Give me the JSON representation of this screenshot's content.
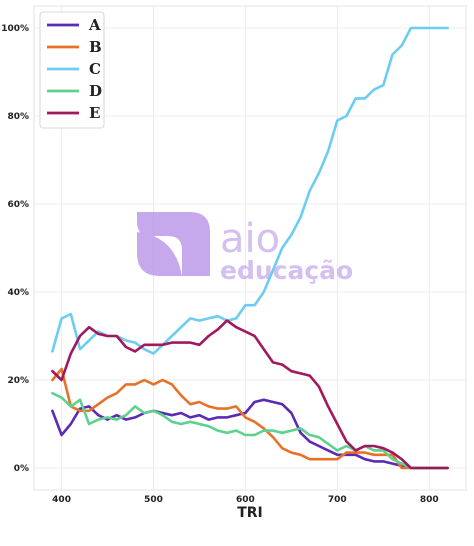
{
  "chart_data": {
    "type": "line",
    "xlabel": "TRI",
    "ylabel": "",
    "xlim": [
      370,
      840
    ],
    "ylim": [
      -0.05,
      1.05
    ],
    "xticks": [
      400,
      500,
      600,
      700,
      800
    ],
    "yticks": [
      0,
      0.2,
      0.4,
      0.6,
      0.8,
      1.0
    ],
    "ytick_labels": [
      "0%",
      "20%",
      "40%",
      "60%",
      "80%",
      "100%"
    ],
    "grid": true,
    "legend_position": "top-left",
    "x": [
      390,
      400,
      410,
      420,
      430,
      440,
      450,
      460,
      470,
      480,
      490,
      500,
      510,
      520,
      530,
      540,
      550,
      560,
      570,
      580,
      590,
      600,
      610,
      620,
      630,
      640,
      650,
      660,
      670,
      680,
      690,
      700,
      710,
      720,
      730,
      740,
      750,
      760,
      770,
      780,
      790,
      800,
      810,
      820
    ],
    "series": [
      {
        "name": "A",
        "color": "#5b2bb5",
        "values": [
          0.13,
          0.075,
          0.1,
          0.135,
          0.14,
          0.12,
          0.11,
          0.12,
          0.11,
          0.115,
          0.125,
          0.13,
          0.125,
          0.12,
          0.125,
          0.115,
          0.12,
          0.11,
          0.115,
          0.115,
          0.12,
          0.125,
          0.15,
          0.155,
          0.15,
          0.145,
          0.125,
          0.08,
          0.06,
          0.05,
          0.04,
          0.03,
          0.03,
          0.03,
          0.02,
          0.015,
          0.015,
          0.01,
          0.005,
          0,
          0,
          0,
          0,
          0
        ]
      },
      {
        "name": "B",
        "color": "#e8712a",
        "values": [
          0.2,
          0.225,
          0.14,
          0.13,
          0.13,
          0.145,
          0.16,
          0.17,
          0.19,
          0.19,
          0.2,
          0.19,
          0.2,
          0.19,
          0.165,
          0.145,
          0.15,
          0.14,
          0.135,
          0.135,
          0.14,
          0.115,
          0.105,
          0.09,
          0.07,
          0.045,
          0.035,
          0.03,
          0.02,
          0.02,
          0.02,
          0.02,
          0.035,
          0.035,
          0.035,
          0.03,
          0.03,
          0.03,
          0,
          0,
          0,
          0,
          0,
          0
        ]
      },
      {
        "name": "C",
        "color": "#6ccdf2",
        "values": [
          0.265,
          0.34,
          0.35,
          0.27,
          0.29,
          0.31,
          0.3,
          0.3,
          0.29,
          0.285,
          0.27,
          0.26,
          0.28,
          0.3,
          0.32,
          0.34,
          0.335,
          0.34,
          0.345,
          0.335,
          0.34,
          0.37,
          0.37,
          0.4,
          0.45,
          0.5,
          0.53,
          0.57,
          0.63,
          0.67,
          0.72,
          0.79,
          0.8,
          0.84,
          0.84,
          0.86,
          0.87,
          0.94,
          0.96,
          1.0,
          1.0,
          1.0,
          1.0,
          1.0
        ]
      },
      {
        "name": "D",
        "color": "#5fd18f",
        "values": [
          0.17,
          0.16,
          0.14,
          0.155,
          0.1,
          0.11,
          0.115,
          0.11,
          0.12,
          0.14,
          0.125,
          0.13,
          0.12,
          0.105,
          0.1,
          0.105,
          0.1,
          0.095,
          0.085,
          0.08,
          0.085,
          0.075,
          0.075,
          0.085,
          0.085,
          0.08,
          0.085,
          0.09,
          0.075,
          0.07,
          0.055,
          0.04,
          0.05,
          0.04,
          0.05,
          0.04,
          0.04,
          0.02,
          0.01,
          0,
          0,
          0,
          0,
          0
        ]
      },
      {
        "name": "E",
        "color": "#a0195e",
        "values": [
          0.22,
          0.2,
          0.26,
          0.3,
          0.32,
          0.305,
          0.3,
          0.3,
          0.275,
          0.265,
          0.28,
          0.28,
          0.28,
          0.285,
          0.285,
          0.285,
          0.28,
          0.3,
          0.315,
          0.335,
          0.32,
          0.31,
          0.3,
          0.27,
          0.24,
          0.235,
          0.22,
          0.215,
          0.21,
          0.185,
          0.14,
          0.1,
          0.06,
          0.04,
          0.05,
          0.05,
          0.045,
          0.035,
          0.02,
          0,
          0,
          0,
          0,
          0
        ]
      }
    ]
  },
  "watermark": {
    "line1": "aio",
    "line2": "educação",
    "color": "#b48de6"
  }
}
